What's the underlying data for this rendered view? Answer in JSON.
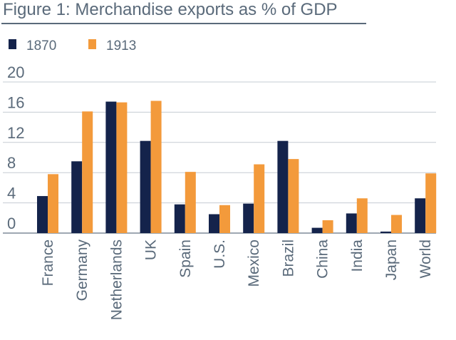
{
  "chart_data": {
    "type": "bar",
    "title": "Figure 1: Merchandise exports as % of GDP",
    "xlabel": "",
    "ylabel": "",
    "ylim": [
      0,
      20
    ],
    "yticks": [
      "20",
      "16",
      "12",
      "8",
      "4",
      "0"
    ],
    "ytick_values": [
      20,
      16,
      12,
      8,
      4,
      0
    ],
    "grid": true,
    "legend_position": "top-left",
    "categories": [
      "France",
      "Germany",
      "Netherlands",
      "UK",
      "Spain",
      "U.S.",
      "Mexico",
      "Brazil",
      "China",
      "India",
      "Japan",
      "World"
    ],
    "series": [
      {
        "name": "1870",
        "color": "#14234b",
        "values": [
          4.9,
          9.5,
          17.4,
          12.2,
          3.8,
          2.5,
          3.9,
          12.2,
          0.7,
          2.6,
          0.2,
          4.6
        ]
      },
      {
        "name": "1913",
        "color": "#f39a3b",
        "values": [
          7.8,
          16.1,
          17.3,
          17.5,
          8.1,
          3.7,
          9.1,
          9.8,
          1.7,
          4.6,
          2.4,
          7.9
        ]
      }
    ]
  }
}
